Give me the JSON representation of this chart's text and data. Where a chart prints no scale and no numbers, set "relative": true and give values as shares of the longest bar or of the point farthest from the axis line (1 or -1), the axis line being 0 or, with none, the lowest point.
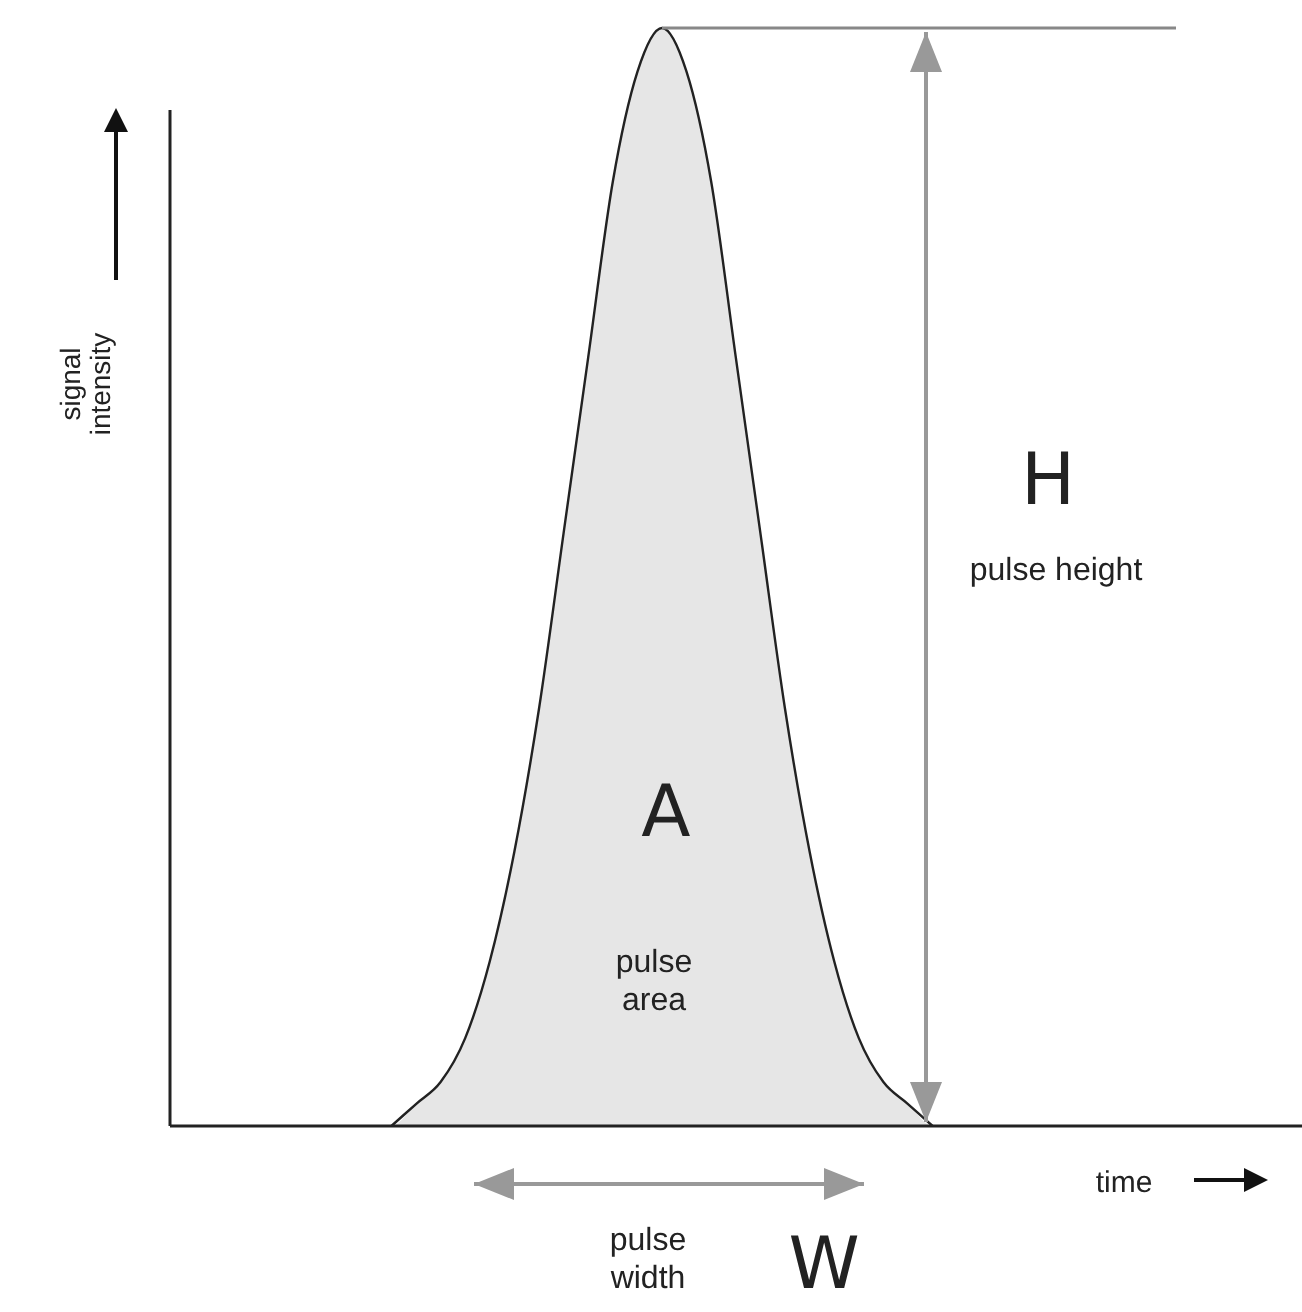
{
  "chart_data": {
    "type": "area",
    "relative": true,
    "xlabel": "time",
    "ylabel": "signal intensity",
    "categories": [
      null,
      null,
      null,
      null,
      null,
      null,
      null,
      null,
      null,
      null,
      null,
      null,
      null,
      null,
      null,
      null,
      null,
      null,
      null,
      null,
      null,
      null,
      null,
      null,
      null,
      null,
      null,
      null,
      null,
      null,
      null,
      null,
      null,
      null,
      null,
      null,
      null,
      null,
      null,
      null,
      null,
      null,
      null,
      null,
      null
    ],
    "series": [
      {
        "color": "#e6e6e6",
        "values": [
          0,
          0,
          0,
          0,
          0,
          0,
          0,
          0,
          0,
          0,
          0.02,
          0.04,
          0.08,
          0.15,
          0.25,
          0.38,
          0.54,
          0.7,
          0.86,
          0.96,
          1,
          0.96,
          0.86,
          0.7,
          0.54,
          0.38,
          0.25,
          0.15,
          0.08,
          0.04,
          0.02,
          0,
          0,
          0,
          0,
          0,
          0,
          0,
          0,
          0,
          0,
          0,
          0,
          0,
          0
        ]
      }
    ],
    "ref_lines": [
      {
        "axis": "y",
        "value": 1,
        "color": "#888888"
      }
    ],
    "annotations": [
      "H",
      "pulse height",
      "A",
      "pulse area",
      "W",
      "pulse width"
    ],
    "legend": false
  }
}
